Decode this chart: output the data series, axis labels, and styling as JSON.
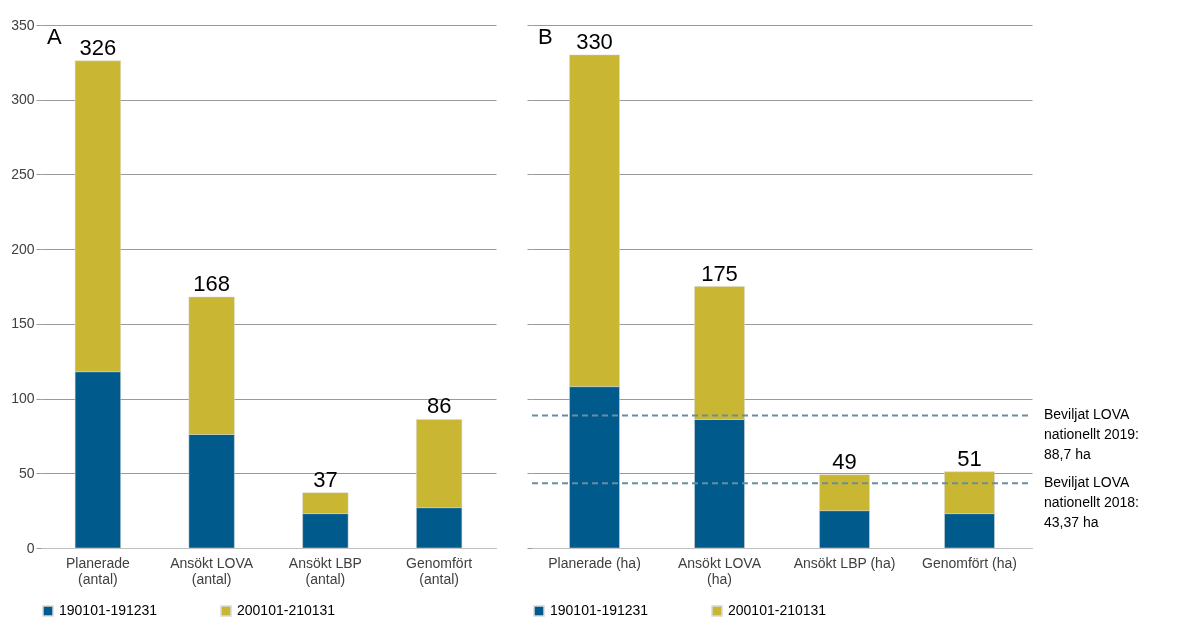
{
  "chart_data": [
    {
      "type": "bar",
      "title": "A",
      "stacked": true,
      "categories": [
        "Planerade (antal)",
        "Ansökt LOVA (antal)",
        "Ansökt LBP (antal)",
        "Genomfört (antal)"
      ],
      "series": [
        {
          "name": "190101-191231",
          "color": "#005a8c",
          "values": [
            118,
            76,
            23,
            27
          ]
        },
        {
          "name": "200101-210131",
          "color": "#c9b632",
          "values": [
            208,
            92,
            14,
            59
          ]
        }
      ],
      "totals": [
        "326",
        "168",
        "37",
        "86"
      ],
      "ylim": [
        0,
        350
      ],
      "yticks": [
        0,
        50,
        100,
        150,
        200,
        250,
        300,
        350
      ],
      "grid": "y",
      "legend": "bottom"
    },
    {
      "type": "bar",
      "title": "B",
      "stacked": true,
      "categories": [
        "Planerade (ha)",
        "Ansökt LOVA (ha)",
        "Ansökt LBP (ha)",
        "Genomfört (ha)"
      ],
      "series": [
        {
          "name": "190101-191231",
          "color": "#005a8c",
          "values": [
            108,
            86,
            25,
            23
          ]
        },
        {
          "name": "200101-210131",
          "color": "#c9b632",
          "values": [
            222,
            89,
            24,
            28
          ]
        }
      ],
      "totals": [
        "330",
        "175",
        "49",
        "51"
      ],
      "ref_lines": [
        {
          "axis": "y",
          "value": 88.7,
          "label": "Beviljat LOVA nationellt 2019: 88,7 ha",
          "color": "#6a8ea0",
          "line_style": "dashed"
        },
        {
          "axis": "y",
          "value": 43.37,
          "label": "Beviljat LOVA nationellt 2018: 43,37 ha",
          "color": "#6a8ea0",
          "line_style": "dashed"
        }
      ],
      "ylim": [
        0,
        350
      ],
      "yticks": [
        0,
        50,
        100,
        150,
        200,
        250,
        300,
        350
      ],
      "grid": "y",
      "legend": "bottom",
      "tick_labels": "x"
    }
  ]
}
